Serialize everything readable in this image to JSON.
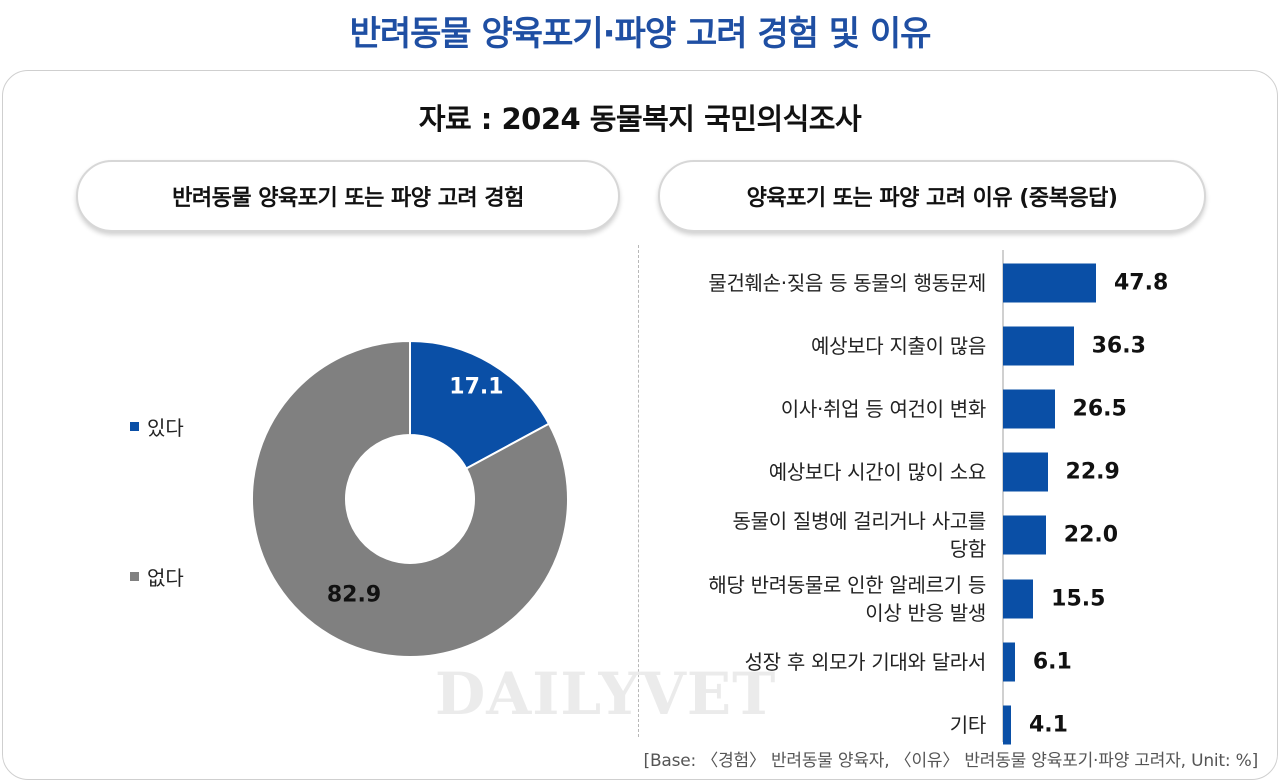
{
  "title": "반려동물 양육포기·파양 고려 경험 및 이유",
  "source": "자료 : 2024 동물복지  국민의식조사",
  "watermark": "DAILYVET",
  "footnote": "[Base: 〈경험〉 반려동물 양육자, 〈이유〉 반려동물 양육포기·파양 고려자, Unit: %]",
  "colors": {
    "title": "#1f4fa3",
    "yes": "#0a4fa6",
    "no": "#808080"
  },
  "chart_data": [
    {
      "type": "pie",
      "donut": true,
      "title": "반려동물 양육포기 또는 파양 고려 경험",
      "categories": [
        "있다",
        "없다"
      ],
      "values": [
        17.1,
        82.9
      ],
      "value_labels": [
        "17.1",
        "82.9"
      ],
      "legend_position": "left"
    },
    {
      "type": "bar",
      "orientation": "horizontal",
      "title": "양육포기 또는 파양 고려 이유 (중복응답)",
      "categories": [
        "물건훼손·짖음 등 동물의 행동문제",
        "예상보다 지출이 많음",
        "이사·취업 등 여건이 변화",
        "예상보다 시간이 많이 소요",
        "동물이 질병에 걸리거나 사고를\n당함",
        "해당 반려동물로 인한 알레르기 등\n이상 반응 발생",
        "성장 후 외모가 기대와 달라서",
        "기타"
      ],
      "values": [
        47.8,
        36.3,
        26.5,
        22.9,
        22.0,
        15.5,
        6.1,
        4.1
      ],
      "value_labels": [
        "47.8",
        "36.3",
        "26.5",
        "22.9",
        "22.0",
        "15.5",
        "6.1",
        "4.1"
      ]
    }
  ]
}
